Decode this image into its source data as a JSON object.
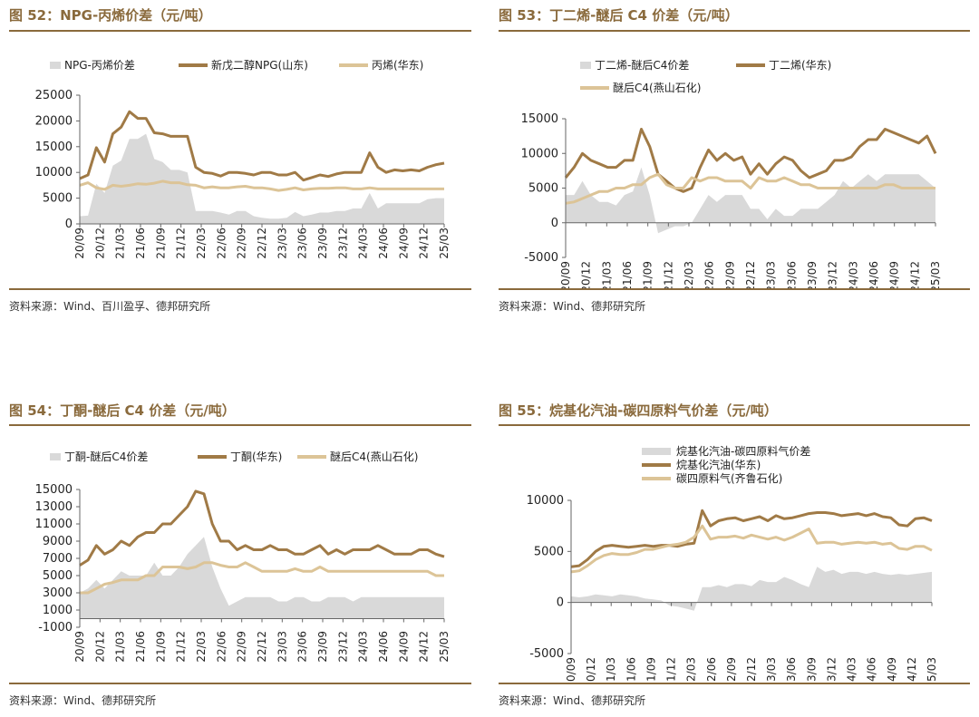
{
  "colors": {
    "accent": "#8a6a3c",
    "area": "#d9d9d9",
    "dark_line": "#a07a46",
    "light_line": "#dcc497"
  },
  "chart_data": [
    {
      "type": "line",
      "title": "图 52：NPG-丙烯价差（元/吨）",
      "source": "资料来源：Wind、百川盈孚、德邦研究所",
      "ylim": [
        0,
        25000
      ],
      "yticks": [
        0,
        5000,
        10000,
        15000,
        20000,
        25000
      ],
      "ytick_labels": [
        "0",
        "5000",
        "10000",
        "15000",
        "20000",
        "25000"
      ],
      "xtick_labels": [
        "20/09",
        "20/12",
        "21/03",
        "21/06",
        "21/09",
        "21/12",
        "22/03",
        "22/06",
        "22/09",
        "22/12",
        "23/03",
        "23/06",
        "23/09",
        "23/12",
        "24/03",
        "24/06",
        "24/09",
        "24/12",
        "25/03"
      ],
      "series": [
        {
          "name": "NPG-丙烯价差",
          "kind": "area",
          "values": [
            1500,
            1600,
            7800,
            6000,
            11300,
            12300,
            16500,
            16500,
            17500,
            12600,
            12000,
            10500,
            10500,
            10000,
            2500,
            2500,
            2500,
            2200,
            1800,
            2500,
            2500,
            1500,
            1200,
            1000,
            1000,
            1200,
            2300,
            1500,
            1800,
            2200,
            2200,
            2500,
            2500,
            3000,
            3000,
            6000,
            3000,
            4000,
            4000,
            4000,
            4000,
            4000,
            4800,
            5000,
            5000
          ]
        },
        {
          "name": "新戊二醇NPG(山东)",
          "kind": "line",
          "values": [
            8800,
            9500,
            14800,
            12000,
            17500,
            18800,
            21800,
            20500,
            20500,
            17700,
            17500,
            17000,
            17000,
            17000,
            11000,
            10000,
            9800,
            9300,
            10000,
            10000,
            9800,
            9500,
            10000,
            10000,
            9500,
            9500,
            10000,
            8500,
            9000,
            9500,
            9200,
            9700,
            10000,
            10000,
            10000,
            13800,
            11000,
            10000,
            10500,
            10300,
            10500,
            10300,
            11000,
            11500,
            11800
          ]
        },
        {
          "name": "丙烯(华东)",
          "kind": "line",
          "values": [
            7500,
            8000,
            7000,
            6700,
            7500,
            7300,
            7500,
            7800,
            7700,
            7900,
            8300,
            8000,
            8000,
            7600,
            7500,
            7000,
            7200,
            7000,
            7000,
            7200,
            7300,
            7000,
            7000,
            6800,
            6500,
            6700,
            7000,
            6600,
            6800,
            6900,
            6900,
            7000,
            7000,
            6800,
            6800,
            7000,
            6800,
            6800,
            6800,
            6800,
            6800,
            6800,
            6800,
            6800,
            6800
          ]
        }
      ]
    },
    {
      "type": "line",
      "title": "图 53：丁二烯-醚后 C4 价差（元/吨）",
      "source": "资料来源：Wind、德邦研究所",
      "ylim": [
        -5000,
        15000
      ],
      "yticks": [
        -5000,
        0,
        5000,
        10000,
        15000
      ],
      "ytick_labels": [
        "-5000",
        "0",
        "5000",
        "10000",
        "15000"
      ],
      "xtick_labels": [
        "20/09",
        "20/12",
        "21/03",
        "21/06",
        "21/09",
        "21/12",
        "22/03",
        "22/06",
        "22/09",
        "22/12",
        "23/03",
        "23/06",
        "23/09",
        "23/12",
        "24/03",
        "24/06",
        "24/09",
        "24/12",
        "25/03"
      ],
      "series": [
        {
          "name": "丁二烯-醚后C4价差",
          "kind": "area",
          "values": [
            4000,
            4000,
            6000,
            4000,
            3000,
            3000,
            2500,
            4000,
            4500,
            8000,
            4000,
            -1500,
            -1000,
            -500,
            -500,
            0,
            2000,
            4000,
            3000,
            4000,
            4000,
            4000,
            2000,
            2000,
            500,
            2000,
            1000,
            1000,
            2000,
            2000,
            2000,
            3000,
            4000,
            6000,
            5000,
            6000,
            7000,
            6000,
            7000,
            7000,
            7000,
            7000,
            7000,
            6000,
            5000
          ]
        },
        {
          "name": "丁二烯(华东)",
          "kind": "line",
          "values": [
            6500,
            8000,
            10000,
            9000,
            8500,
            8000,
            8000,
            9000,
            9000,
            13500,
            11000,
            7000,
            6000,
            5000,
            4500,
            5000,
            8000,
            10500,
            9000,
            10000,
            9000,
            9500,
            7000,
            8500,
            7000,
            8500,
            9500,
            9000,
            7500,
            6500,
            7000,
            7500,
            9000,
            9000,
            9500,
            11000,
            12000,
            12000,
            13500,
            13000,
            12500,
            12000,
            11500,
            12500,
            10000
          ]
        },
        {
          "name": "醚后C4(燕山石化)",
          "kind": "line",
          "values": [
            2800,
            3000,
            3500,
            4000,
            4500,
            4500,
            5000,
            5000,
            5500,
            5500,
            6500,
            7000,
            5500,
            5000,
            5000,
            6500,
            6000,
            6500,
            6500,
            6000,
            6000,
            6000,
            5000,
            6500,
            6000,
            6000,
            6500,
            6000,
            5500,
            5500,
            5000,
            5000,
            5000,
            5000,
            5000,
            5000,
            5000,
            5000,
            5500,
            5500,
            5000,
            5000,
            5000,
            5000,
            5000
          ]
        }
      ]
    },
    {
      "type": "line",
      "title": "图 54：丁酮-醚后 C4 价差（元/吨）",
      "source": "资料来源：Wind、德邦研究所",
      "ylim": [
        -1000,
        15000
      ],
      "yticks": [
        -1000,
        1000,
        3000,
        5000,
        7000,
        9000,
        11000,
        13000,
        15000
      ],
      "ytick_labels": [
        "-1000",
        "1000",
        "3000",
        "5000",
        "7000",
        "9000",
        "11000",
        "13000",
        "15000"
      ],
      "xtick_labels": [
        "20/09",
        "20/12",
        "21/03",
        "21/06",
        "21/09",
        "21/12",
        "22/03",
        "22/06",
        "22/09",
        "22/12",
        "23/03",
        "23/06",
        "23/09",
        "23/12",
        "24/03",
        "24/06",
        "24/09",
        "24/12",
        "25/03"
      ],
      "series": [
        {
          "name": "丁酮-醚后C4价差",
          "kind": "area",
          "values": [
            3000,
            3500,
            4500,
            3500,
            4500,
            5500,
            5000,
            5000,
            5000,
            6500,
            5000,
            5000,
            6000,
            7500,
            8500,
            9500,
            6000,
            3500,
            1500,
            2000,
            2500,
            2500,
            2500,
            2500,
            2000,
            2000,
            2500,
            2500,
            2000,
            2000,
            2500,
            2500,
            2500,
            2000,
            2500,
            2500,
            2500,
            2500,
            2500,
            2500,
            2500,
            2500,
            2500,
            2500,
            2500
          ]
        },
        {
          "name": "丁酮(华东)",
          "kind": "line",
          "values": [
            6200,
            6800,
            8500,
            7500,
            8000,
            9000,
            8500,
            9500,
            10000,
            10000,
            11000,
            11000,
            12000,
            13000,
            14800,
            14500,
            11000,
            9000,
            9000,
            8000,
            8500,
            8000,
            8000,
            8500,
            8000,
            8000,
            7500,
            7500,
            8000,
            8500,
            7500,
            8000,
            7500,
            8000,
            8000,
            8000,
            8500,
            8000,
            7500,
            7500,
            7500,
            8000,
            8000,
            7500,
            7200
          ]
        },
        {
          "name": "醚后C4(燕山石化)",
          "kind": "line",
          "values": [
            3000,
            3000,
            3500,
            4000,
            4200,
            4500,
            4500,
            4500,
            5000,
            5000,
            6000,
            6000,
            6000,
            5800,
            6000,
            6500,
            6500,
            6200,
            6000,
            6000,
            6500,
            6000,
            5500,
            5500,
            5500,
            5500,
            5800,
            5500,
            5500,
            6000,
            5500,
            5500,
            5500,
            5500,
            5500,
            5500,
            5500,
            5500,
            5500,
            5500,
            5500,
            5500,
            5500,
            5000,
            5000
          ]
        }
      ]
    },
    {
      "type": "line",
      "title": "图 55：烷基化汽油-碳四原料气价差（元/吨）",
      "source": "资料来源：Wind、德邦研究所",
      "ylim": [
        -5000,
        10000
      ],
      "yticks": [
        -5000,
        0,
        5000,
        10000
      ],
      "ytick_labels": [
        "-5000",
        "0",
        "5000",
        "10000"
      ],
      "xtick_labels": [
        "20/09",
        "20/12",
        "21/03",
        "21/06",
        "21/09",
        "21/12",
        "22/03",
        "22/06",
        "22/09",
        "22/12",
        "23/03",
        "23/06",
        "23/09",
        "23/12",
        "24/03",
        "24/06",
        "24/09",
        "24/12",
        "25/03"
      ],
      "series": [
        {
          "name": "烷基化汽油-碳四原料气价差",
          "kind": "area",
          "values": [
            600,
            500,
            600,
            800,
            700,
            600,
            800,
            700,
            600,
            400,
            300,
            200,
            -300,
            -400,
            -600,
            -800,
            1500,
            1500,
            1700,
            1500,
            1800,
            1800,
            1600,
            2200,
            2000,
            2000,
            2500,
            2200,
            1800,
            1500,
            3500,
            3000,
            3200,
            2800,
            3000,
            3000,
            2800,
            3000,
            2800,
            2700,
            2800,
            2700,
            2800,
            2900,
            3000
          ]
        },
        {
          "name": "烷基化汽油(华东)",
          "kind": "line",
          "values": [
            3500,
            3600,
            4200,
            5000,
            5500,
            5600,
            5500,
            5400,
            5500,
            5600,
            5500,
            5600,
            5600,
            5500,
            5700,
            5800,
            9000,
            7500,
            8000,
            8200,
            8300,
            8000,
            8200,
            8400,
            8000,
            8500,
            8200,
            8300,
            8500,
            8700,
            8800,
            8800,
            8700,
            8500,
            8600,
            8700,
            8500,
            8700,
            8400,
            8300,
            7600,
            7500,
            8200,
            8300,
            8000
          ]
        },
        {
          "name": "碳四原料气(齐鲁石化)",
          "kind": "line",
          "values": [
            3000,
            3100,
            3600,
            4200,
            4600,
            4800,
            4700,
            4700,
            4900,
            5200,
            5200,
            5400,
            5600,
            5700,
            5900,
            6400,
            7500,
            6200,
            6400,
            6400,
            6500,
            6300,
            6600,
            6400,
            6200,
            6400,
            6100,
            6400,
            6800,
            7200,
            5800,
            5900,
            5900,
            5700,
            5800,
            5900,
            5800,
            5900,
            5700,
            5800,
            5300,
            5200,
            5500,
            5500,
            5100
          ]
        }
      ]
    }
  ]
}
